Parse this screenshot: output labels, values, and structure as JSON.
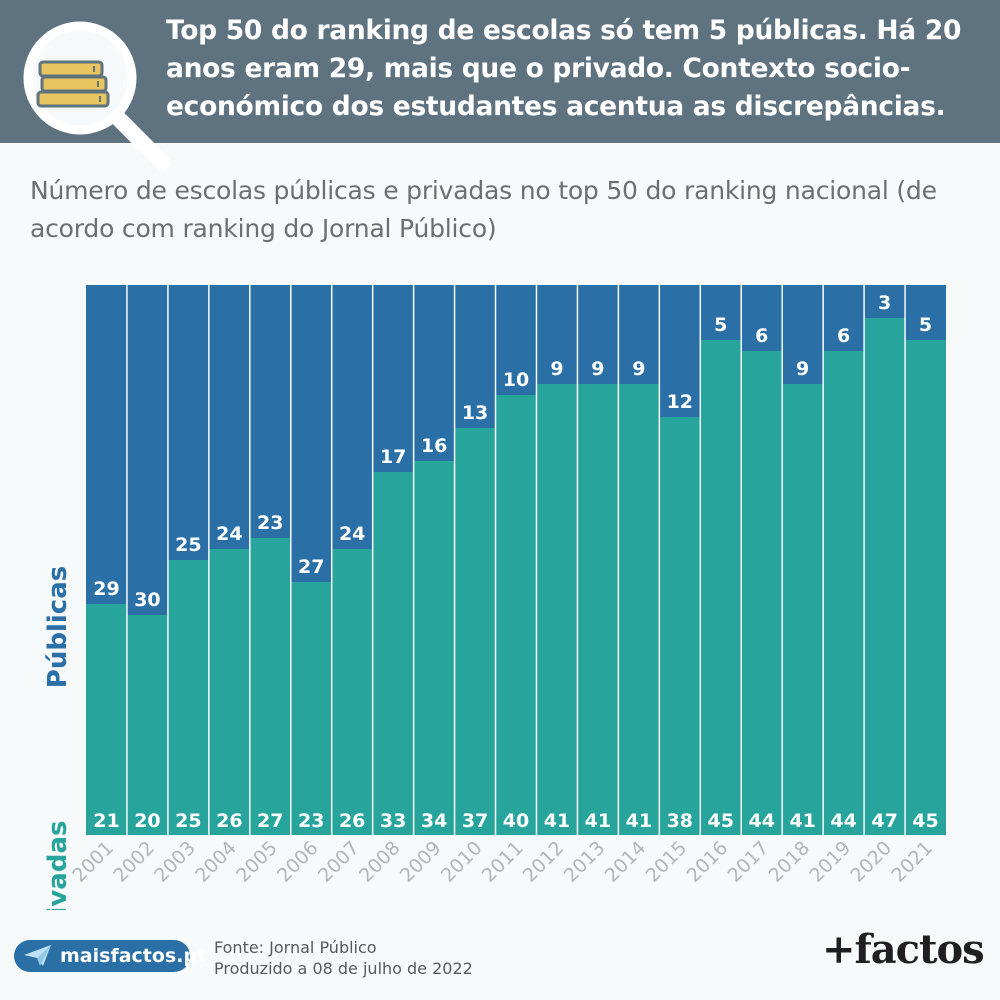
{
  "header": {
    "title": "Top 50 do ranking de escolas só tem 5 públicas. Há 20 anos eram 29, mais que o privado. Contexto socio-económico dos estudantes acentua as discrepâncias.",
    "icon": "magnifier-books-icon"
  },
  "subtitle": "Número de escolas públicas e privadas no top 50 do ranking nacional (de acordo com ranking do Jornal Público)",
  "colors": {
    "publicas": "#2a6fa6",
    "privadas": "#27a59c",
    "header_bg": "#5f7280",
    "tick": "#b3b6b8"
  },
  "chart_data": {
    "type": "bar",
    "stacked": true,
    "categories": [
      "2001",
      "2002",
      "2003",
      "2004",
      "2005",
      "2006",
      "2007",
      "2008",
      "2009",
      "2010",
      "2011",
      "2012",
      "2013",
      "2014",
      "2015",
      "2016",
      "2017",
      "2018",
      "2019",
      "2020",
      "2021"
    ],
    "series": [
      {
        "name": "Privadas",
        "values": [
          21,
          20,
          25,
          26,
          27,
          23,
          26,
          33,
          34,
          37,
          40,
          41,
          41,
          41,
          38,
          45,
          44,
          41,
          44,
          47,
          45
        ]
      },
      {
        "name": "Públicas",
        "values": [
          29,
          30,
          25,
          24,
          23,
          27,
          24,
          17,
          16,
          13,
          10,
          9,
          9,
          9,
          12,
          5,
          6,
          9,
          6,
          3,
          5
        ]
      }
    ],
    "ylim": [
      0,
      50
    ],
    "grid": false,
    "legend": "left-side rotated labels"
  },
  "footer": {
    "site": "maisfactos.pt",
    "site_icon": "paper-plane-icon",
    "source_line1": "Fonte: Jornal Público",
    "source_line2": "Produzido a 08 de julho de 2022",
    "brand": "+factos"
  }
}
